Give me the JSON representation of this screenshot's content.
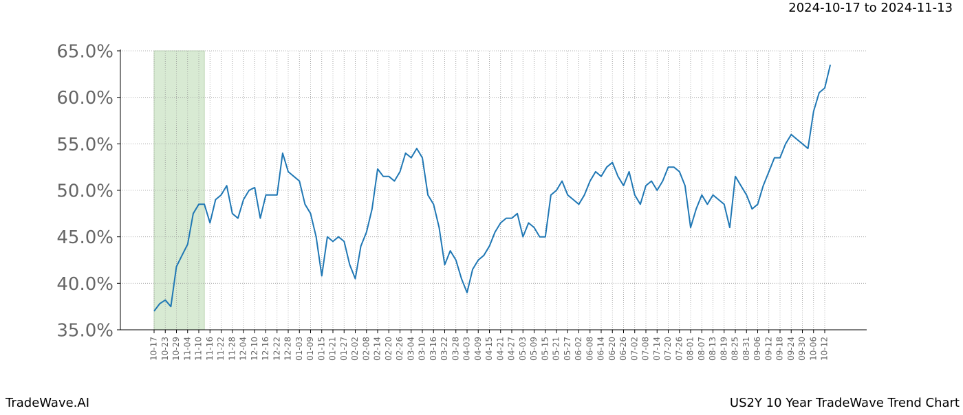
{
  "chart_data": {
    "type": "line",
    "title": "US2Y 10 Year TradeWave Trend Chart",
    "subtitle": "2024-10-17 to 2024-11-13",
    "brand": "TradeWave.AI",
    "categories": [
      "10-17",
      null,
      "10-23",
      null,
      "10-29",
      null,
      "11-04",
      null,
      "11-10",
      null,
      "11-16",
      null,
      "11-22",
      null,
      "11-28",
      null,
      "12-04",
      null,
      "12-10",
      null,
      "12-16",
      null,
      "12-22",
      null,
      "12-28",
      null,
      "01-03",
      null,
      "01-09",
      null,
      "01-15",
      null,
      "01-21",
      null,
      "01-27",
      null,
      "02-02",
      null,
      "02-08",
      null,
      "02-14",
      null,
      "02-20",
      null,
      "02-26",
      null,
      "03-04",
      null,
      "03-10",
      null,
      "03-16",
      null,
      "03-22",
      null,
      "03-28",
      null,
      "04-03",
      null,
      "04-09",
      null,
      "04-15",
      null,
      "04-21",
      null,
      "04-27",
      null,
      "05-03",
      null,
      "05-09",
      null,
      "05-15",
      null,
      "05-21",
      null,
      "05-27",
      null,
      "06-02",
      null,
      "06-08",
      null,
      "06-14",
      null,
      "06-20",
      null,
      "06-26",
      null,
      "07-02",
      null,
      "07-08",
      null,
      "07-14",
      null,
      "07-20",
      null,
      "07-26",
      null,
      "08-01",
      null,
      "08-07",
      null,
      "08-13",
      null,
      "08-19",
      null,
      "08-25",
      null,
      "08-31",
      null,
      "09-06",
      null,
      "09-12",
      null,
      "09-18",
      null,
      "09-24",
      null,
      "09-30",
      null,
      "10-06",
      null,
      "10-12",
      null
    ],
    "series": [
      {
        "color": "#1f77b4",
        "values": [
          37.0,
          37.8,
          38.2,
          37.5,
          41.8,
          43.0,
          44.2,
          47.5,
          48.5,
          48.5,
          46.5,
          49.0,
          49.5,
          50.5,
          47.5,
          47.0,
          49.0,
          50.0,
          50.3,
          47.0,
          49.5,
          49.5,
          49.5,
          54.0,
          52.0,
          51.5,
          51.0,
          48.5,
          47.5,
          45.0,
          40.8,
          45.0,
          44.5,
          45.0,
          44.5,
          42.0,
          40.5,
          44.0,
          45.5,
          48.0,
          52.3,
          51.5,
          51.5,
          51.0,
          52.0,
          54.0,
          53.5,
          54.5,
          53.5,
          49.5,
          48.5,
          46.0,
          42.0,
          43.5,
          42.5,
          40.5,
          39.0,
          41.5,
          42.5,
          43.0,
          44.0,
          45.5,
          46.5,
          47.0,
          47.0,
          47.5,
          45.0,
          46.5,
          46.0,
          45.0,
          45.0,
          49.5,
          50.0,
          51.0,
          49.5,
          49.0,
          48.5,
          49.5,
          51.0,
          52.0,
          51.5,
          52.5,
          53.0,
          51.5,
          50.5,
          52.0,
          49.5,
          48.5,
          50.5,
          51.0,
          50.0,
          51.0,
          52.5,
          52.5,
          52.0,
          50.5,
          46.0,
          48.0,
          49.5,
          48.5,
          49.5,
          49.0,
          48.5,
          46.0,
          51.5,
          50.5,
          49.5,
          48.0,
          48.5,
          50.5,
          52.0,
          53.5,
          53.5,
          55.0,
          56.0,
          55.5,
          55.0,
          54.5,
          58.5,
          60.5,
          61.0,
          63.5
        ]
      }
    ],
    "highlight": [
      0,
      9
    ],
    "highlight_color": "#d8ead3",
    "ylim": [
      35,
      65
    ],
    "yticks": [
      {
        "value": 35,
        "label": "35.0%"
      },
      {
        "value": 40,
        "label": "40.0%"
      },
      {
        "value": 45,
        "label": "45.0%"
      },
      {
        "value": 50,
        "label": "50.0%"
      },
      {
        "value": 55,
        "label": "55.0%"
      },
      {
        "value": 60,
        "label": "60.0%"
      },
      {
        "value": 65,
        "label": "65.0%"
      }
    ],
    "grid": true
  }
}
